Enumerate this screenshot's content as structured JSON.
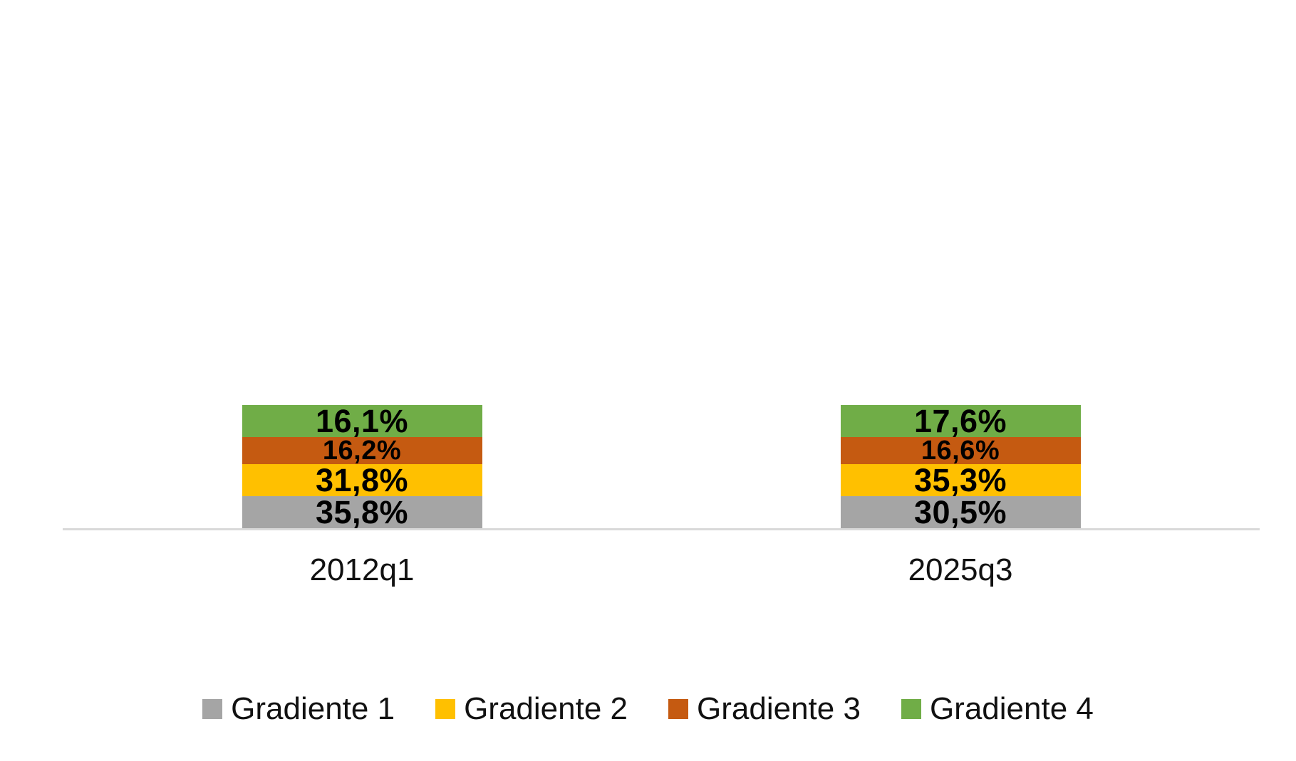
{
  "chart_data": {
    "type": "bar",
    "stacked": true,
    "orientation": "vertical",
    "title": "",
    "xlabel": "",
    "ylabel": "",
    "ylim": [
      0,
      100
    ],
    "grid": false,
    "legend_position": "bottom",
    "axis_line_color": "#D9D9D9",
    "label_color": "#000000",
    "categories": [
      "2012q1",
      "2025q3"
    ],
    "series": [
      {
        "name": "Gradiente 1",
        "color": "#A5A5A5",
        "values": [
          35.8,
          30.5
        ],
        "labels": [
          "35,8%",
          "30,5%"
        ],
        "label_size": "large"
      },
      {
        "name": "Gradiente 2",
        "color": "#FFC000",
        "values": [
          31.8,
          35.3
        ],
        "labels": [
          "31,8%",
          "35,3%"
        ],
        "label_size": "large"
      },
      {
        "name": "Gradiente 3",
        "color": "#C55A11",
        "values": [
          16.2,
          16.6
        ],
        "labels": [
          "16,2%",
          "16,6%"
        ],
        "label_size": "small"
      },
      {
        "name": "Gradiente 4",
        "color": "#70AD47",
        "values": [
          16.1,
          17.6
        ],
        "labels": [
          "16,1%",
          "17,6%"
        ],
        "label_size": "large"
      }
    ]
  }
}
